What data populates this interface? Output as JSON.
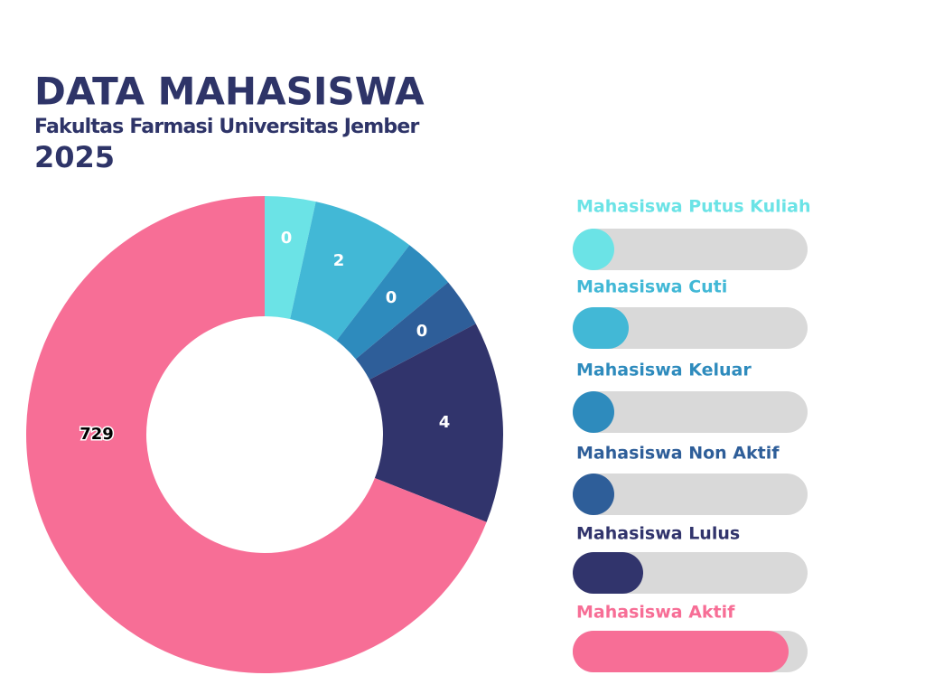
{
  "header": {
    "title": "DATA MAHASISWA",
    "subtitle": "Fakultas Farmasi Universitas Jember",
    "year": "2025"
  },
  "groups": [
    {
      "name": "Mahasiswa Putus Kuliah",
      "count": 0,
      "color": "#6be3e6"
    },
    {
      "name": "Mahasiswa Cuti",
      "count": 2,
      "color": "#42b8d6"
    },
    {
      "name": "Mahasiswa Keluar",
      "count": 0,
      "color": "#2e8bbd"
    },
    {
      "name": "Mahasiswa Non Aktif",
      "count": 0,
      "color": "#2e5e99"
    },
    {
      "name": "Mahasiswa Lulus",
      "count": 4,
      "color": "#31346c"
    },
    {
      "name": "Mahasiswa Aktif",
      "count": 729,
      "color": "#f76e96"
    }
  ]
}
